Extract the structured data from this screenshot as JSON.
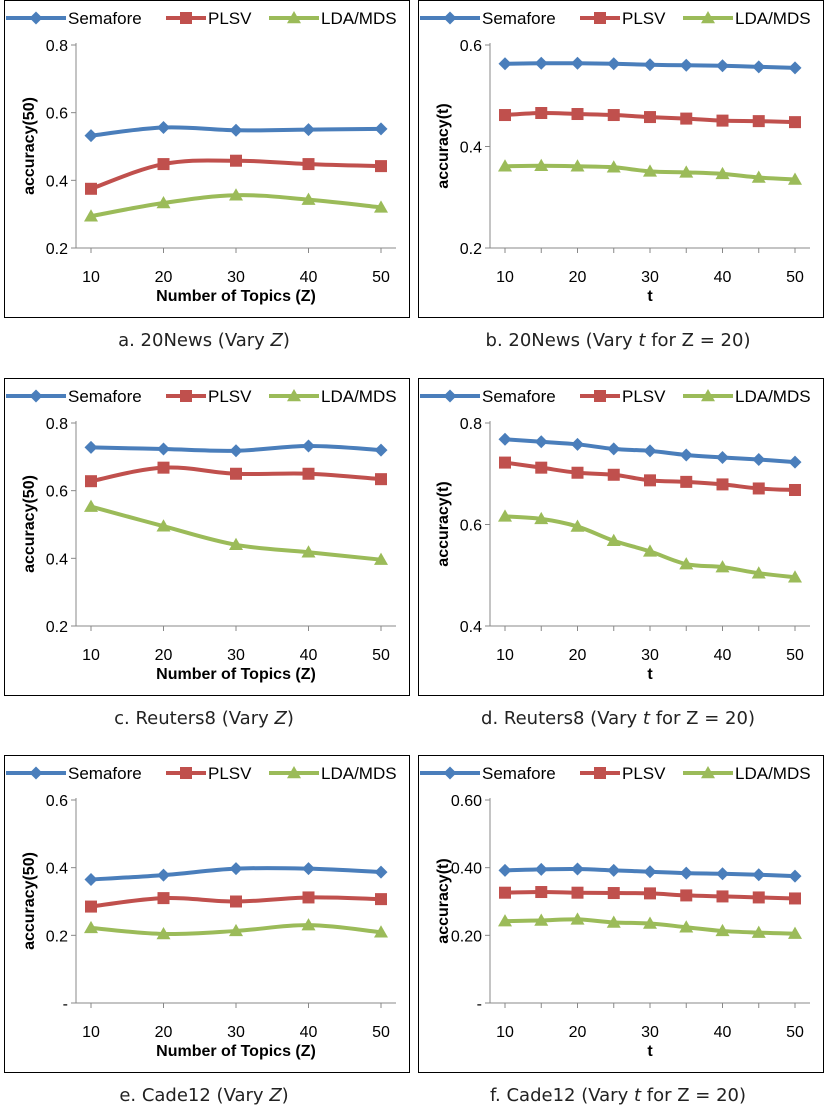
{
  "chart_data": [
    {
      "id": "a",
      "type": "line",
      "categories": [
        "10",
        "20",
        "30",
        "40",
        "50"
      ],
      "series": [
        {
          "name": "Semafore",
          "color": "#4a7ebb",
          "marker": "diamond",
          "values": [
            0.532,
            0.556,
            0.548,
            0.55,
            0.552
          ]
        },
        {
          "name": "PLSV",
          "color": "#c0504d",
          "marker": "square",
          "values": [
            0.375,
            0.448,
            0.458,
            0.448,
            0.442
          ]
        },
        {
          "name": "LDA/MDS",
          "color": "#9bbb59",
          "marker": "triangle",
          "values": [
            0.294,
            0.333,
            0.356,
            0.343,
            0.32
          ]
        }
      ],
      "yticks": [
        "0.2",
        "0.4",
        "0.6",
        "0.8"
      ],
      "ytick_values": [
        0.2,
        0.4,
        0.6,
        0.8
      ],
      "ylim": [
        0.2,
        0.8
      ],
      "xlabel": "Number of Topics (Z)",
      "ylabel": "accuracy(50)",
      "caption_prefix": "a. 20News (Vary ",
      "caption_var": "Z",
      "caption_suffix": ")"
    },
    {
      "id": "b",
      "type": "line",
      "categories": [
        "10",
        "",
        "20",
        "",
        "30",
        "",
        "40",
        "",
        "50"
      ],
      "series": [
        {
          "name": "Semafore",
          "color": "#4a7ebb",
          "marker": "diamond",
          "values": [
            0.563,
            0.564,
            0.564,
            0.563,
            0.561,
            0.56,
            0.559,
            0.557,
            0.555
          ]
        },
        {
          "name": "PLSV",
          "color": "#c0504d",
          "marker": "square",
          "values": [
            0.462,
            0.466,
            0.464,
            0.462,
            0.458,
            0.455,
            0.451,
            0.45,
            0.448
          ]
        },
        {
          "name": "LDA/MDS",
          "color": "#9bbb59",
          "marker": "triangle",
          "values": [
            0.361,
            0.362,
            0.361,
            0.359,
            0.351,
            0.349,
            0.346,
            0.339,
            0.335
          ]
        }
      ],
      "yticks": [
        "0.2",
        "0.4",
        "0.6"
      ],
      "ytick_values": [
        0.2,
        0.4,
        0.6
      ],
      "ylim": [
        0.2,
        0.6
      ],
      "xlabel": "t",
      "ylabel": "accuracy(t)",
      "caption_prefix": "b. 20News (Vary ",
      "caption_var": "t",
      "caption_suffix": " for Z = 20)"
    },
    {
      "id": "c",
      "type": "line",
      "categories": [
        "10",
        "20",
        "30",
        "40",
        "50"
      ],
      "series": [
        {
          "name": "Semafore",
          "color": "#4a7ebb",
          "marker": "diamond",
          "values": [
            0.728,
            0.723,
            0.718,
            0.732,
            0.72
          ]
        },
        {
          "name": "PLSV",
          "color": "#c0504d",
          "marker": "square",
          "values": [
            0.628,
            0.668,
            0.65,
            0.65,
            0.634
          ]
        },
        {
          "name": "LDA/MDS",
          "color": "#9bbb59",
          "marker": "triangle",
          "values": [
            0.553,
            0.495,
            0.44,
            0.418,
            0.396
          ]
        }
      ],
      "yticks": [
        "0.2",
        "0.4",
        "0.6",
        "0.8"
      ],
      "ytick_values": [
        0.2,
        0.4,
        0.6,
        0.8
      ],
      "ylim": [
        0.2,
        0.8
      ],
      "xlabel": "Number of Topics (Z)",
      "ylabel": "accuracy(50)",
      "caption_prefix": "c. Reuters8 (Vary ",
      "caption_var": "Z",
      "caption_suffix": ")"
    },
    {
      "id": "d",
      "type": "line",
      "categories": [
        "10",
        "",
        "20",
        "",
        "30",
        "",
        "40",
        "",
        "50"
      ],
      "series": [
        {
          "name": "Semafore",
          "color": "#4a7ebb",
          "marker": "diamond",
          "values": [
            0.768,
            0.763,
            0.758,
            0.749,
            0.745,
            0.737,
            0.732,
            0.728,
            0.723
          ]
        },
        {
          "name": "PLSV",
          "color": "#c0504d",
          "marker": "square",
          "values": [
            0.722,
            0.712,
            0.702,
            0.698,
            0.687,
            0.684,
            0.679,
            0.671,
            0.668
          ]
        },
        {
          "name": "LDA/MDS",
          "color": "#9bbb59",
          "marker": "triangle",
          "values": [
            0.616,
            0.611,
            0.596,
            0.568,
            0.547,
            0.522,
            0.516,
            0.504,
            0.496
          ]
        }
      ],
      "yticks": [
        "0.4",
        "0.6",
        "0.8"
      ],
      "ytick_values": [
        0.4,
        0.6,
        0.8
      ],
      "ylim": [
        0.4,
        0.8
      ],
      "xlabel": "t",
      "ylabel": "accuracy(t)",
      "caption_prefix": "d. Reuters8 (Vary ",
      "caption_var": "t",
      "caption_suffix": " for Z = 20)"
    },
    {
      "id": "e",
      "type": "line",
      "categories": [
        "10",
        "20",
        "30",
        "40",
        "50"
      ],
      "series": [
        {
          "name": "Semafore",
          "color": "#4a7ebb",
          "marker": "diamond",
          "values": [
            0.365,
            0.378,
            0.397,
            0.397,
            0.387
          ]
        },
        {
          "name": "PLSV",
          "color": "#c0504d",
          "marker": "square",
          "values": [
            0.285,
            0.31,
            0.3,
            0.312,
            0.307
          ]
        },
        {
          "name": "LDA/MDS",
          "color": "#9bbb59",
          "marker": "triangle",
          "values": [
            0.222,
            0.204,
            0.213,
            0.23,
            0.209
          ]
        }
      ],
      "yticks": [
        "-",
        "0.2",
        "0.4",
        "0.6"
      ],
      "ytick_values": [
        0,
        0.2,
        0.4,
        0.6
      ],
      "ylim": [
        0,
        0.6
      ],
      "xlabel": "Number of Topics (Z)",
      "ylabel": "accuracy(50)",
      "caption_prefix": "e. Cade12 (Vary ",
      "caption_var": "Z",
      "caption_suffix": ")"
    },
    {
      "id": "f",
      "type": "line",
      "categories": [
        "10",
        "",
        "20",
        "",
        "30",
        "",
        "40",
        "",
        "50"
      ],
      "series": [
        {
          "name": "Semafore",
          "color": "#4a7ebb",
          "marker": "diamond",
          "values": [
            0.392,
            0.395,
            0.396,
            0.392,
            0.388,
            0.384,
            0.382,
            0.379,
            0.375
          ]
        },
        {
          "name": "PLSV",
          "color": "#c0504d",
          "marker": "square",
          "values": [
            0.326,
            0.328,
            0.326,
            0.325,
            0.324,
            0.318,
            0.315,
            0.312,
            0.309
          ]
        },
        {
          "name": "LDA/MDS",
          "color": "#9bbb59",
          "marker": "triangle",
          "values": [
            0.242,
            0.244,
            0.247,
            0.238,
            0.235,
            0.224,
            0.213,
            0.208,
            0.205
          ]
        }
      ],
      "yticks": [
        "-",
        "0.20",
        "0.40",
        "0.60"
      ],
      "ytick_values": [
        0,
        0.2,
        0.4,
        0.6
      ],
      "ylim": [
        0,
        0.6
      ],
      "xlabel": "t",
      "ylabel": "accuracy(t)",
      "caption_prefix": "f. Cade12 (Vary ",
      "caption_var": "t",
      "caption_suffix": " for Z = 20)"
    }
  ]
}
